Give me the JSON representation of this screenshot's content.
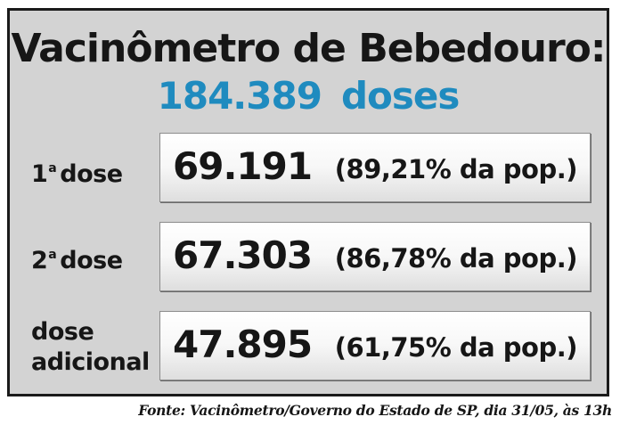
{
  "header": {
    "title": "Vacinômetro de Bebedouro:",
    "total_number": "184.389",
    "total_unit": "doses"
  },
  "rows": [
    {
      "label_num": "1",
      "label_sup": "a",
      "label_text": "dose",
      "count": "69.191",
      "percent": "(89,21% da pop.)"
    },
    {
      "label_num": "2",
      "label_sup": "a",
      "label_text": "dose",
      "count": "67.303",
      "percent": "(86,78% da pop.)"
    },
    {
      "label_line1": "dose",
      "label_line2": "adicional",
      "count": "47.895",
      "percent": "(61,75% da pop.)"
    }
  ],
  "source": "Fonte: Vacinômetro/Governo do Estado de SP, dia 31/05, às 13h",
  "colors": {
    "accent": "#1f8bbf",
    "panel": "#d3d3d3",
    "text": "#161616"
  }
}
